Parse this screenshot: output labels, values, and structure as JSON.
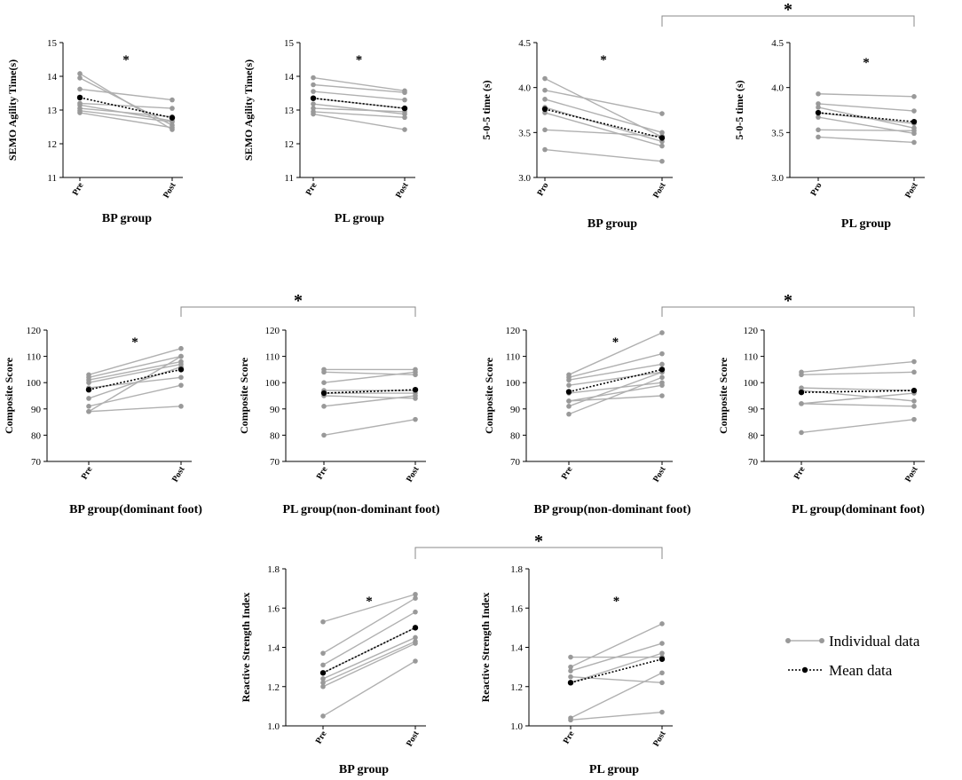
{
  "chart_data": [
    {
      "type": "line",
      "id": "p1",
      "title": "",
      "xlabel": "BP group",
      "ylabel": "SEMO Agility Time(s)",
      "categories": [
        "Pre",
        "Post"
      ],
      "ylim": [
        11,
        15
      ],
      "yticks": [
        11,
        12,
        13,
        14,
        15
      ],
      "yticklabels": [
        "11",
        "12",
        "13",
        "14",
        "15"
      ],
      "individuals": [
        [
          14.08,
          12.42
        ],
        [
          13.95,
          12.55
        ],
        [
          13.62,
          13.3
        ],
        [
          13.2,
          13.05
        ],
        [
          13.05,
          12.8
        ],
        [
          12.98,
          12.65
        ],
        [
          12.92,
          12.48
        ],
        [
          13.15,
          12.68
        ]
      ],
      "mean": [
        13.37,
        12.77
      ],
      "significance": "*"
    },
    {
      "type": "line",
      "id": "p2",
      "title": "",
      "xlabel": "PL group",
      "ylabel": "SEMO Agility Time(s)",
      "categories": [
        "Pre",
        "Post"
      ],
      "ylim": [
        11,
        15
      ],
      "yticks": [
        11,
        12,
        13,
        14,
        15
      ],
      "yticklabels": [
        "11",
        "12",
        "13",
        "14",
        "15"
      ],
      "individuals": [
        [
          13.96,
          13.57
        ],
        [
          13.75,
          13.52
        ],
        [
          13.55,
          13.3
        ],
        [
          13.35,
          13.05
        ],
        [
          13.18,
          12.88
        ],
        [
          13.05,
          12.95
        ],
        [
          12.95,
          12.78
        ],
        [
          12.88,
          12.42
        ]
      ],
      "mean": [
        13.35,
        13.05
      ],
      "significance": "*"
    },
    {
      "type": "line",
      "id": "p3",
      "title": "",
      "xlabel": "BP group",
      "ylabel": "5-0-5 time (s)",
      "categories": [
        "Pro",
        "Post"
      ],
      "ylim": [
        3.0,
        4.5
      ],
      "yticks": [
        3.0,
        3.5,
        4.0,
        4.5
      ],
      "yticklabels": [
        "3.0",
        "3.5",
        "4.0",
        "4.5"
      ],
      "individuals": [
        [
          4.1,
          3.45
        ],
        [
          3.97,
          3.71
        ],
        [
          3.87,
          3.5
        ],
        [
          3.78,
          3.4
        ],
        [
          3.72,
          3.35
        ],
        [
          3.53,
          3.46
        ],
        [
          3.31,
          3.18
        ]
      ],
      "mean": [
        3.76,
        3.44
      ],
      "significance": "*"
    },
    {
      "type": "line",
      "id": "p4",
      "title": "",
      "xlabel": "PL group",
      "ylabel": "5-0-5 time (s)",
      "categories": [
        "Pro",
        "Post"
      ],
      "ylim": [
        3.0,
        4.5
      ],
      "yticks": [
        3.0,
        3.5,
        4.0,
        4.5
      ],
      "yticklabels": [
        "3.0",
        "3.5",
        "4.0",
        "4.5"
      ],
      "individuals": [
        [
          3.93,
          3.9
        ],
        [
          3.82,
          3.74
        ],
        [
          3.78,
          3.55
        ],
        [
          3.72,
          3.6
        ],
        [
          3.67,
          3.49
        ],
        [
          3.53,
          3.52
        ],
        [
          3.45,
          3.39
        ]
      ],
      "mean": [
        3.72,
        3.62
      ],
      "significance": "*"
    },
    {
      "type": "line",
      "id": "p5",
      "title": "",
      "xlabel": "BP group(dominant foot)",
      "ylabel": "Composite Score",
      "categories": [
        "Pre",
        "Post"
      ],
      "ylim": [
        70,
        120
      ],
      "yticks": [
        70,
        80,
        90,
        100,
        110,
        120
      ],
      "yticklabels": [
        "70",
        "80",
        "90",
        "100",
        "110",
        "120"
      ],
      "individuals": [
        [
          103,
          113
        ],
        [
          102,
          110
        ],
        [
          101,
          108
        ],
        [
          100,
          107
        ],
        [
          98,
          102
        ],
        [
          94,
          106
        ],
        [
          91,
          99
        ],
        [
          89,
          110
        ],
        [
          89,
          91
        ]
      ],
      "mean": [
        97.3,
        105.0
      ],
      "significance": "*"
    },
    {
      "type": "line",
      "id": "p6",
      "title": "",
      "xlabel": "PL group(non-dominant foot)",
      "ylabel": "Composite Score",
      "categories": [
        "Pre",
        "Post"
      ],
      "ylim": [
        70,
        120
      ],
      "yticks": [
        70,
        80,
        90,
        100,
        110,
        120
      ],
      "yticklabels": [
        "70",
        "80",
        "90",
        "100",
        "110",
        "120"
      ],
      "individuals": [
        [
          105,
          105
        ],
        [
          104,
          103
        ],
        [
          100,
          104
        ],
        [
          97,
          97
        ],
        [
          96,
          96
        ],
        [
          95,
          94
        ],
        [
          91,
          95
        ],
        [
          80,
          86
        ]
      ],
      "mean": [
        96.0,
        97.3
      ],
      "significance": ""
    },
    {
      "type": "line",
      "id": "p7",
      "title": "",
      "xlabel": "BP group(non-dominant foot)",
      "ylabel": "Composite Score",
      "categories": [
        "Pre",
        "Post"
      ],
      "ylim": [
        70,
        120
      ],
      "yticks": [
        70,
        80,
        90,
        100,
        110,
        120
      ],
      "yticklabels": [
        "70",
        "80",
        "90",
        "100",
        "110",
        "120"
      ],
      "individuals": [
        [
          103,
          119
        ],
        [
          102,
          111
        ],
        [
          101,
          107
        ],
        [
          99,
          104
        ],
        [
          96,
          100
        ],
        [
          93,
          99
        ],
        [
          91,
          104
        ],
        [
          88,
          102
        ],
        [
          93,
          95
        ]
      ],
      "mean": [
        96.5,
        105.0
      ],
      "significance": "*"
    },
    {
      "type": "line",
      "id": "p8",
      "title": "",
      "xlabel": "PL group(dominant foot)",
      "ylabel": "Composite Score",
      "categories": [
        "Pre",
        "Post"
      ],
      "ylim": [
        70,
        120
      ],
      "yticks": [
        70,
        80,
        90,
        100,
        110,
        120
      ],
      "yticklabels": [
        "70",
        "80",
        "90",
        "100",
        "110",
        "120"
      ],
      "individuals": [
        [
          104,
          108
        ],
        [
          103,
          104
        ],
        [
          98,
          97
        ],
        [
          97,
          93
        ],
        [
          92,
          91
        ],
        [
          92,
          96
        ],
        [
          81,
          86
        ]
      ],
      "mean": [
        96.3,
        97.0
      ],
      "significance": ""
    },
    {
      "type": "line",
      "id": "p9",
      "title": "",
      "xlabel": "BP group",
      "ylabel": "Reactive Strength Index",
      "categories": [
        "Pre",
        "Post"
      ],
      "ylim": [
        1.0,
        1.8
      ],
      "yticks": [
        1.0,
        1.2,
        1.4,
        1.6,
        1.8
      ],
      "yticklabels": [
        "1.0",
        "1.2",
        "1.4",
        "1.6",
        "1.8"
      ],
      "individuals": [
        [
          1.53,
          1.67
        ],
        [
          1.37,
          1.65
        ],
        [
          1.31,
          1.58
        ],
        [
          1.27,
          1.5
        ],
        [
          1.24,
          1.45
        ],
        [
          1.22,
          1.43
        ],
        [
          1.2,
          1.42
        ],
        [
          1.05,
          1.33
        ]
      ],
      "mean": [
        1.27,
        1.5
      ],
      "significance": "*"
    },
    {
      "type": "line",
      "id": "p10",
      "title": "",
      "xlabel": "PL group",
      "ylabel": "Reactive Strength Index",
      "categories": [
        "Pre",
        "Post"
      ],
      "ylim": [
        1.0,
        1.8
      ],
      "yticks": [
        1.0,
        1.2,
        1.4,
        1.6,
        1.8
      ],
      "yticklabels": [
        "1.0",
        "1.2",
        "1.4",
        "1.6",
        "1.8"
      ],
      "individuals": [
        [
          1.35,
          1.35
        ],
        [
          1.3,
          1.52
        ],
        [
          1.28,
          1.42
        ],
        [
          1.25,
          1.22
        ],
        [
          1.22,
          1.37
        ],
        [
          1.04,
          1.27
        ],
        [
          1.03,
          1.07
        ]
      ],
      "mean": [
        1.22,
        1.34
      ],
      "significance": "*"
    }
  ],
  "comparisons": [
    {
      "from": "p3",
      "to": "p4",
      "label": "*"
    },
    {
      "from": "p5",
      "to": "p6",
      "label": "*"
    },
    {
      "from": "p7",
      "to": "p8",
      "label": "*"
    },
    {
      "from": "p9",
      "to": "p10",
      "label": "*"
    }
  ],
  "legend": {
    "individual_label": "Individual data",
    "mean_label": "Mean data",
    "individual_color": "#999999",
    "line_color": "#b0b0b0",
    "mean_color": "#000000"
  }
}
